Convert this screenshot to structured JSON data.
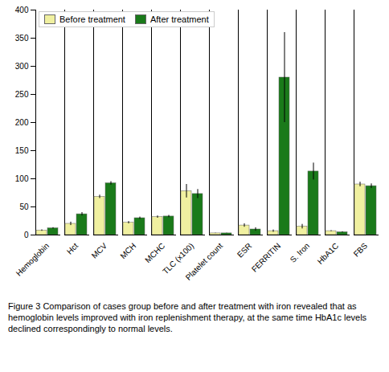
{
  "chart_data": {
    "type": "bar",
    "categories": [
      "Hemoglobin",
      "Hct",
      "MCV",
      "MCH",
      "MCHC",
      "TLC (x100)",
      "Platelet count",
      "ESR",
      "FERRITIN",
      "S. Iron",
      "HbA1C",
      "FBS"
    ],
    "series": [
      {
        "name": "Before treatment",
        "color": "#f0f0a0",
        "values": [
          8,
          20,
          68,
          22,
          32,
          78,
          3,
          17,
          7,
          15,
          7,
          90
        ],
        "error": [
          1.2,
          3,
          3,
          2,
          2,
          12,
          0.3,
          3,
          2,
          4,
          0.8,
          4
        ]
      },
      {
        "name": "After treatment",
        "color": "#1a7a1a",
        "values": [
          12,
          37,
          92,
          30,
          33,
          73,
          3,
          10,
          280,
          113,
          5,
          87
        ],
        "error": [
          1.2,
          3,
          3,
          2,
          2,
          8,
          0.3,
          3,
          80,
          15,
          0.8,
          4
        ]
      }
    ],
    "ylim": [
      0,
      400
    ],
    "yticks": [
      0,
      50,
      100,
      150,
      200,
      250,
      300,
      350,
      400
    ],
    "grid": false,
    "legend": "upper left",
    "caption": "Figure 3 Comparison of cases group before and after treatment with iron revealed that as hemoglobin levels improved with iron replenishment therapy, at the same time HbA1c levels declined correspondingly to normal levels."
  }
}
